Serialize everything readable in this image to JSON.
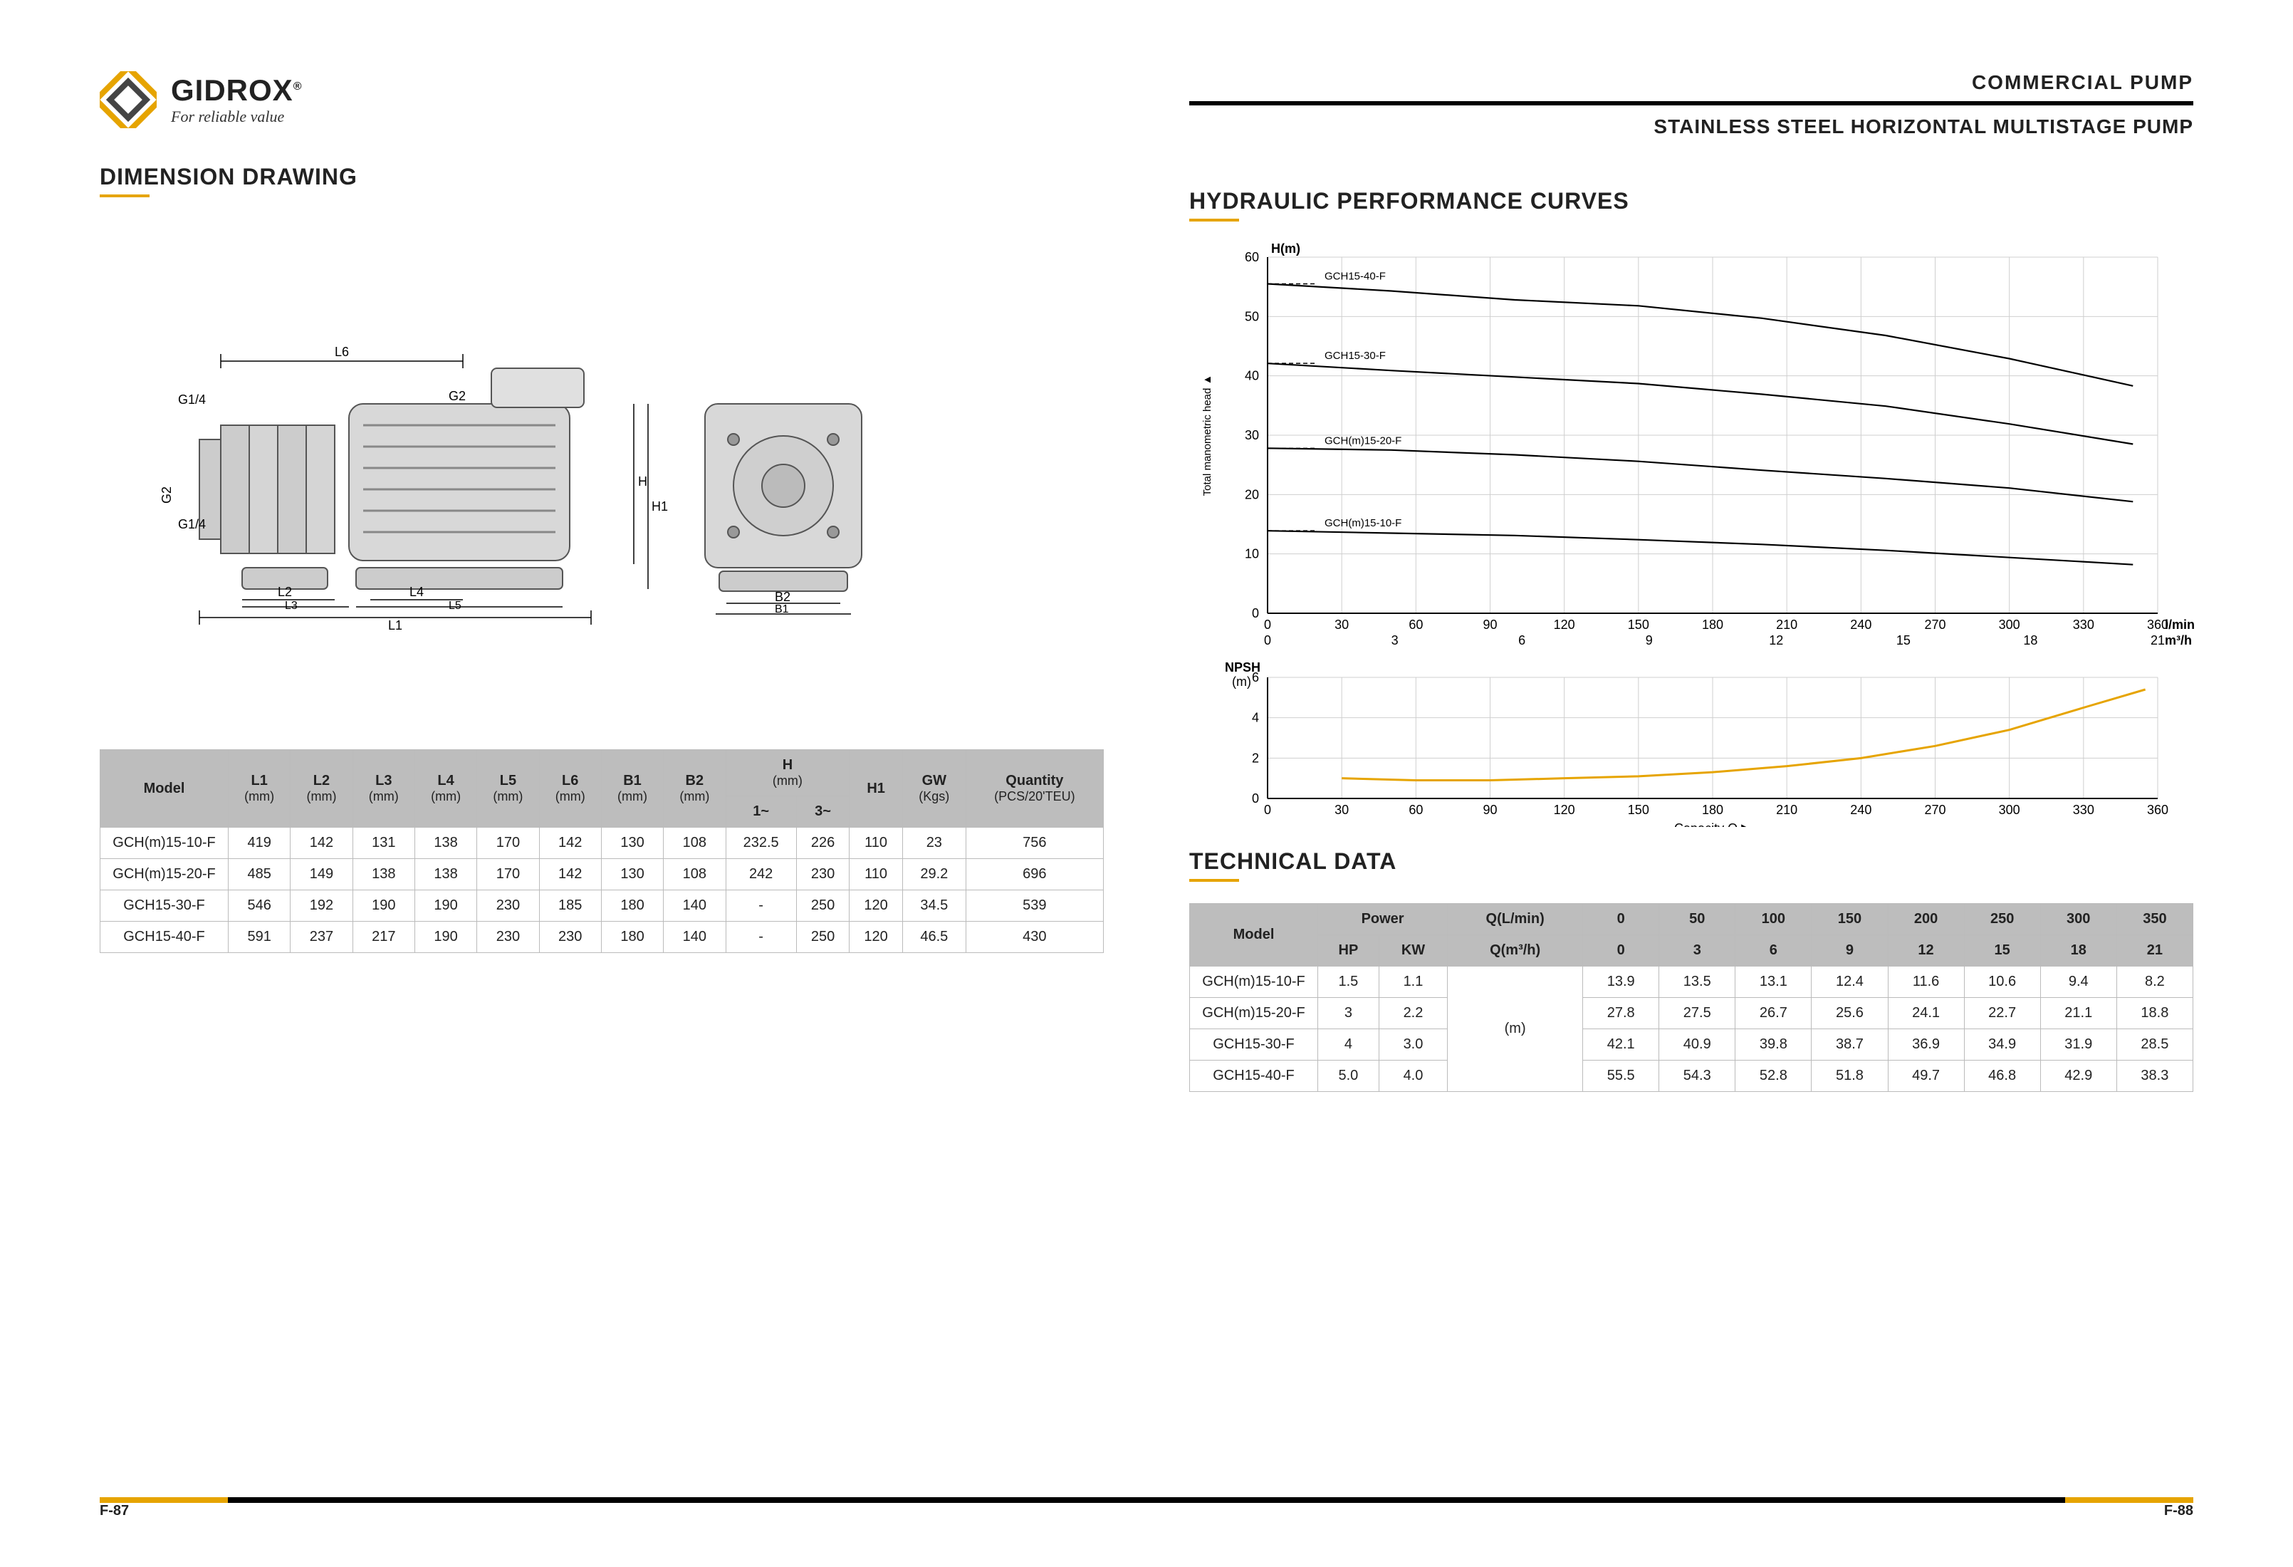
{
  "logo": {
    "brand": "GIDROX",
    "reg": "®",
    "tagline": "For reliable value"
  },
  "header_right": {
    "line1": "COMMERCIAL  PUMP",
    "line2": "STAINLESS STEEL HORIZONTAL  MULTISTAGE  PUMP"
  },
  "sections": {
    "dim": "DIMENSION DRAWING",
    "curves": "HYDRAULIC PERFORMANCE CURVES",
    "tech": "TECHNICAL DATA"
  },
  "drawing": {
    "labels": [
      "G1/4",
      "G2",
      "G1/4",
      "G2",
      "L1",
      "L2",
      "L3",
      "L4",
      "L5",
      "L6",
      "H",
      "H1",
      "B1",
      "B2"
    ]
  },
  "dim_table": {
    "columns": [
      "Model",
      "L1",
      "L2",
      "L3",
      "L4",
      "L5",
      "L6",
      "B1",
      "B2",
      "H_1",
      "H_3",
      "H1",
      "GW",
      "Quantity"
    ],
    "units": [
      "",
      "(mm)",
      "(mm)",
      "(mm)",
      "(mm)",
      "(mm)",
      "(mm)",
      "(mm)",
      "(mm)",
      "1~",
      "3~",
      "",
      "(Kgs)",
      "(PCS/20'TEU)"
    ],
    "rows": [
      [
        "GCH(m)15-10-F",
        "419",
        "142",
        "131",
        "138",
        "170",
        "142",
        "130",
        "108",
        "232.5",
        "226",
        "110",
        "23",
        "756"
      ],
      [
        "GCH(m)15-20-F",
        "485",
        "149",
        "138",
        "138",
        "170",
        "142",
        "130",
        "108",
        "242",
        "230",
        "110",
        "29.2",
        "696"
      ],
      [
        "GCH15-30-F",
        "546",
        "192",
        "190",
        "190",
        "230",
        "185",
        "180",
        "140",
        "-",
        "250",
        "120",
        "34.5",
        "539"
      ],
      [
        "GCH15-40-F",
        "591",
        "237",
        "217",
        "190",
        "230",
        "230",
        "180",
        "140",
        "-",
        "250",
        "120",
        "46.5",
        "430"
      ]
    ]
  },
  "chart": {
    "y_label": "H(m)",
    "y_side": "Total manometric head  ▲",
    "x_label_top_r": "l/min",
    "x_label_bot_r": "m³/h",
    "npsh_label": "NPSH\n(m)",
    "x_caption": "Capacity Q  ▶",
    "x_min": 0,
    "x_max": 360,
    "x_step": 30,
    "x2_min": 0,
    "x2_max": 21,
    "x2_step": 3,
    "y_min": 0,
    "y_max": 60,
    "y_step": 10,
    "npsh_min": 0,
    "npsh_max": 6,
    "npsh_step": 2,
    "grid_color": "#cfcfcf",
    "axis_color": "#000000",
    "curve_color": "#000000",
    "npsh_color": "#e6a400",
    "bg": "#ffffff",
    "label_font": 18,
    "series": [
      {
        "name": "GCH15-40-F",
        "pts": [
          [
            0,
            55.5
          ],
          [
            50,
            54.3
          ],
          [
            100,
            52.8
          ],
          [
            150,
            51.8
          ],
          [
            200,
            49.7
          ],
          [
            250,
            46.8
          ],
          [
            300,
            42.9
          ],
          [
            350,
            38.3
          ]
        ]
      },
      {
        "name": "GCH15-30-F",
        "pts": [
          [
            0,
            42.1
          ],
          [
            50,
            40.9
          ],
          [
            100,
            39.8
          ],
          [
            150,
            38.7
          ],
          [
            200,
            36.9
          ],
          [
            250,
            34.9
          ],
          [
            300,
            31.9
          ],
          [
            350,
            28.5
          ]
        ]
      },
      {
        "name": "GCH(m)15-20-F",
        "pts": [
          [
            0,
            27.8
          ],
          [
            50,
            27.5
          ],
          [
            100,
            26.7
          ],
          [
            150,
            25.6
          ],
          [
            200,
            24.1
          ],
          [
            250,
            22.7
          ],
          [
            300,
            21.1
          ],
          [
            350,
            18.8
          ]
        ]
      },
      {
        "name": "GCH(m)15-10-F",
        "pts": [
          [
            0,
            13.9
          ],
          [
            50,
            13.5
          ],
          [
            100,
            13.1
          ],
          [
            150,
            12.4
          ],
          [
            200,
            11.6
          ],
          [
            250,
            10.6
          ],
          [
            300,
            9.4
          ],
          [
            350,
            8.2
          ]
        ]
      }
    ],
    "npsh_pts": [
      [
        30,
        1.0
      ],
      [
        60,
        0.9
      ],
      [
        90,
        0.9
      ],
      [
        120,
        1.0
      ],
      [
        150,
        1.1
      ],
      [
        180,
        1.3
      ],
      [
        210,
        1.6
      ],
      [
        240,
        2.0
      ],
      [
        270,
        2.6
      ],
      [
        300,
        3.4
      ],
      [
        330,
        4.5
      ],
      [
        355,
        5.4
      ]
    ]
  },
  "tech_table": {
    "top_q_lmin": [
      "0",
      "50",
      "100",
      "150",
      "200",
      "250",
      "300",
      "350"
    ],
    "top_q_m3h": [
      "0",
      "3",
      "6",
      "9",
      "12",
      "15",
      "18",
      "21"
    ],
    "rows": [
      {
        "model": "GCH(m)15-10-F",
        "hp": "1.5",
        "kw": "1.1",
        "h": [
          "13.9",
          "13.5",
          "13.1",
          "12.4",
          "11.6",
          "10.6",
          "9.4",
          "8.2"
        ]
      },
      {
        "model": "GCH(m)15-20-F",
        "hp": "3",
        "kw": "2.2",
        "h": [
          "27.8",
          "27.5",
          "26.7",
          "25.6",
          "24.1",
          "22.7",
          "21.1",
          "18.8"
        ]
      },
      {
        "model": "GCH15-30-F",
        "hp": "4",
        "kw": "3.0",
        "h": [
          "42.1",
          "40.9",
          "39.8",
          "38.7",
          "36.9",
          "34.9",
          "31.9",
          "28.5"
        ]
      },
      {
        "model": "GCH15-40-F",
        "hp": "5.0",
        "kw": "4.0",
        "h": [
          "55.5",
          "54.3",
          "52.8",
          "51.8",
          "49.7",
          "46.8",
          "42.9",
          "38.3"
        ]
      }
    ],
    "row_unit_label": "(m)"
  },
  "footer": {
    "left": "F-87",
    "right": "F-88"
  },
  "colors": {
    "orange": "#e6a400",
    "black": "#000000",
    "grid": "#cfcfcf",
    "thead": "#bdbdbd"
  }
}
